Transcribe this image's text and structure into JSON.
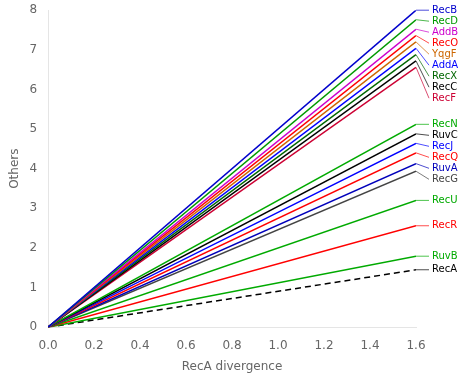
{
  "chart_data": {
    "type": "line",
    "xlabel": "RecA divergence",
    "ylabel": "Others",
    "x": [
      0.0,
      1.6
    ],
    "series": [
      {
        "name": "RecB",
        "color": "#0000CC",
        "line_style": "solid",
        "values": [
          0,
          8
        ]
      },
      {
        "name": "RecD",
        "color": "#009900",
        "line_style": "solid",
        "values": [
          0,
          7.76
        ]
      },
      {
        "name": "AddB",
        "color": "#CC00CC",
        "line_style": "solid",
        "values": [
          0,
          7.52
        ]
      },
      {
        "name": "RecO",
        "color": "#FF0000",
        "line_style": "solid",
        "values": [
          0,
          7.36
        ]
      },
      {
        "name": "YqgF",
        "color": "#CC6600",
        "line_style": "solid",
        "values": [
          0,
          7.2
        ]
      },
      {
        "name": "AddA",
        "color": "#0000FF",
        "line_style": "solid",
        "values": [
          0,
          7.04
        ]
      },
      {
        "name": "RecX",
        "color": "#006600",
        "line_style": "solid",
        "values": [
          0,
          6.88
        ]
      },
      {
        "name": "RecC",
        "color": "#000000",
        "line_style": "solid",
        "values": [
          0,
          6.72
        ]
      },
      {
        "name": "RecF",
        "color": "#CC0033",
        "line_style": "solid",
        "values": [
          0,
          6.56
        ]
      },
      {
        "name": "RecN",
        "color": "#00AA00",
        "line_style": "solid",
        "values": [
          0,
          5.12
        ]
      },
      {
        "name": "RuvC",
        "color": "#000000",
        "line_style": "solid",
        "values": [
          0,
          4.88
        ]
      },
      {
        "name": "RecJ",
        "color": "#0000FF",
        "line_style": "solid",
        "values": [
          0,
          4.64
        ]
      },
      {
        "name": "RecQ",
        "color": "#FF0000",
        "line_style": "solid",
        "values": [
          0,
          4.4
        ]
      },
      {
        "name": "RuvA",
        "color": "#0000BB",
        "line_style": "solid",
        "values": [
          0,
          4.128
        ]
      },
      {
        "name": "RecG",
        "color": "#444444",
        "line_style": "solid",
        "values": [
          0,
          3.936
        ]
      },
      {
        "name": "RecU",
        "color": "#00AA00",
        "line_style": "solid",
        "values": [
          0,
          3.2
        ]
      },
      {
        "name": "RecR",
        "color": "#FF0000",
        "line_style": "solid",
        "values": [
          0,
          2.56
        ]
      },
      {
        "name": "RuvB",
        "color": "#00AA00",
        "line_style": "solid",
        "values": [
          0,
          1.792
        ]
      },
      {
        "name": "RecA",
        "color": "#000000",
        "line_style": "dashed",
        "values": [
          0,
          1.4496
        ]
      }
    ],
    "xlim": [
      0,
      1.6
    ],
    "ylim": [
      0,
      8
    ],
    "xticks": [
      {
        "value": 0,
        "label": "0.0"
      },
      0.2,
      0.4,
      0.6,
      0.8,
      {
        "value": 1,
        "label": "1.0"
      },
      1.2,
      1.4,
      1.6
    ],
    "yticks": [
      0,
      1,
      2,
      3,
      4,
      5,
      6,
      7,
      8
    ],
    "grid": false
  }
}
